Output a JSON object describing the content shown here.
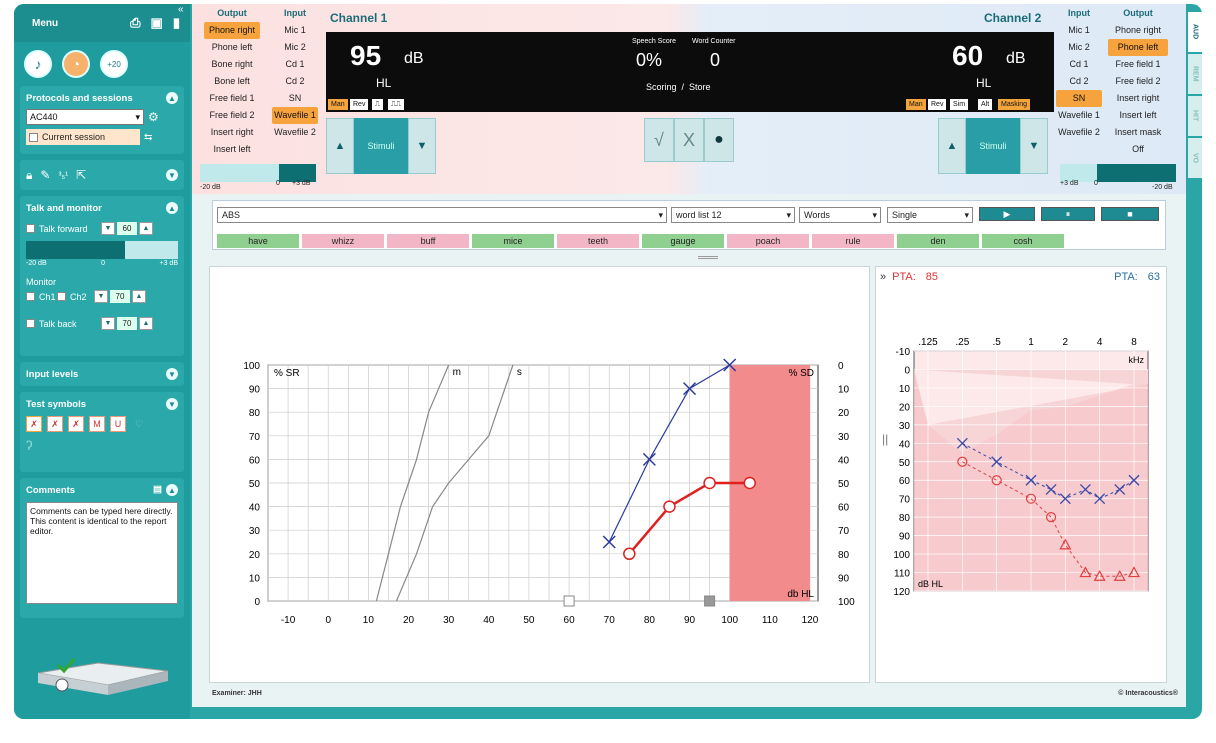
{
  "sidebar": {
    "menu_label": "Menu",
    "protocols": {
      "title": "Protocols and sessions",
      "protocol": "AC440",
      "session": "Current session"
    },
    "talk_monitor": {
      "title": "Talk and monitor",
      "talk_forward": "Talk forward",
      "talk_forward_value": "60",
      "scale_left": "-20 dB",
      "scale_mid": "0",
      "scale_right": "+3 dB",
      "monitor": "Monitor",
      "ch1": "Ch1",
      "ch2": "Ch2",
      "monitor_value": "70",
      "talk_back": "Talk back",
      "talk_back_value": "70"
    },
    "input_levels": "Input levels",
    "test_symbols": "Test symbols",
    "comments": {
      "title": "Comments",
      "text": "Comments can be typed here directly. This content is identical to the report editor."
    }
  },
  "channel1": {
    "title": "Channel 1",
    "output_header": "Output",
    "input_header": "Input",
    "outputs": [
      "Phone right",
      "Phone left",
      "Bone right",
      "Bone left",
      "Free field 1",
      "Free field 2",
      "Insert right",
      "Insert left"
    ],
    "inputs": [
      "Mic 1",
      "Mic 2",
      "Cd 1",
      "Cd 2",
      "SN",
      "Wavefile 1",
      "Wavefile 2"
    ],
    "selected_output": "Phone right",
    "selected_input": "Wavefile 1",
    "level": "95",
    "unit": "dB",
    "hl": "HL",
    "buttons": [
      "Man",
      "Rev"
    ],
    "stimuli": "Stimuli",
    "scale_left": "-20 dB",
    "scale_mid": "0",
    "scale_right": "+3 dB"
  },
  "channel2": {
    "title": "Channel 2",
    "output_header": "Output",
    "input_header": "Input",
    "outputs": [
      "Phone right",
      "Phone left",
      "Free field 1",
      "Free field 2",
      "Insert right",
      "Insert left",
      "Insert mask",
      "Off"
    ],
    "inputs": [
      "Mic 1",
      "Mic 2",
      "Cd 1",
      "Cd 2",
      "SN",
      "Wavefile 1",
      "Wavefile 2"
    ],
    "selected_output": "Phone left",
    "selected_input": "SN",
    "level": "60",
    "unit": "dB",
    "hl": "HL",
    "buttons": [
      "Man",
      "Rev",
      "Sim",
      "Alt",
      "Masking"
    ],
    "stimuli": "Stimuli",
    "scale_left": "+3 dB",
    "scale_mid": "0",
    "scale_right": "-20 dB"
  },
  "center_display": {
    "speech_score_label": "Speech Score",
    "speech_score": "0%",
    "word_counter_label": "Word Counter",
    "word_counter": "0",
    "scoring": "Scoring",
    "slash": "/",
    "store": "Store"
  },
  "word_bar": {
    "list_name": "ABS",
    "word_list": "word list 12",
    "mode": "Words",
    "presentation": "Single",
    "words": [
      "have",
      "whizz",
      "buff",
      "mice",
      "teeth",
      "gauge",
      "poach",
      "rule",
      "den",
      "cosh"
    ],
    "word_colors": [
      "#8fcf8f",
      "#f2b6c6",
      "#f2b6c6",
      "#8fcf8f",
      "#f2b6c6",
      "#8fcf8f",
      "#f2b6c6",
      "#f2b6c6",
      "#8fcf8f",
      "#8fcf8f"
    ]
  },
  "speech_chart": {
    "y_left_label": "% SR",
    "y_right_label": "% SD",
    "x_unit": "db HL",
    "y_left_ticks": [
      "100",
      "90",
      "80",
      "70",
      "60",
      "50",
      "40",
      "30",
      "20",
      "10",
      "0"
    ],
    "y_right_ticks": [
      "0",
      "10",
      "20",
      "30",
      "40",
      "50",
      "60",
      "70",
      "80",
      "90",
      "100"
    ],
    "x_ticks": [
      "-10",
      "0",
      "10",
      "20",
      "30",
      "40",
      "50",
      "60",
      "70",
      "80",
      "90",
      "100",
      "110",
      "120"
    ],
    "curve_labels": [
      "m",
      "s"
    ]
  },
  "chart_data": [
    {
      "type": "line",
      "xlabel": "db HL",
      "ylabel": "% SR",
      "xlim": [
        -15,
        122
      ],
      "ylim": [
        0,
        100
      ],
      "series": [
        {
          "name": "m",
          "x": [
            12,
            15,
            18,
            20,
            22,
            25,
            30
          ],
          "y": [
            0,
            20,
            40,
            50,
            60,
            80,
            100
          ],
          "color": "#888888"
        },
        {
          "name": "s",
          "x": [
            17,
            22,
            26,
            30,
            35,
            40,
            46
          ],
          "y": [
            0,
            20,
            40,
            50,
            60,
            70,
            100
          ],
          "color": "#888888"
        },
        {
          "x": [
            70,
            80,
            90,
            100
          ],
          "y": [
            25,
            60,
            90,
            100
          ],
          "color": "#2a3aa0",
          "marker": "x"
        },
        {
          "x": [
            75,
            85,
            95,
            105
          ],
          "y": [
            20,
            40,
            50,
            50
          ],
          "color": "#e02020",
          "marker": "o"
        }
      ],
      "shaded_region": {
        "x": [
          100,
          120
        ],
        "y": [
          0,
          100
        ],
        "color": "#f28b8b"
      }
    },
    {
      "type": "line",
      "xlabel": "kHz",
      "ylabel": "dB HL",
      "x_ticks": [
        ".125",
        ".25",
        ".5",
        "1",
        "2",
        "4",
        "8"
      ],
      "y_ticks": [
        "-10",
        "0",
        "10",
        "20",
        "30",
        "40",
        "50",
        "60",
        "70",
        "80",
        "90",
        "100",
        "110",
        "120"
      ],
      "ylim": [
        -10,
        120
      ],
      "series": [
        {
          "x": [
            0.25,
            0.5,
            1,
            1.5,
            2,
            3,
            4,
            6,
            8
          ],
          "y": [
            40,
            50,
            60,
            65,
            70,
            65,
            70,
            65,
            60
          ],
          "color": "#3a4aa8",
          "marker": "x",
          "dashed": true
        },
        {
          "x": [
            0.25,
            0.5,
            1,
            1.5,
            2,
            3,
            4,
            6,
            8
          ],
          "y": [
            50,
            60,
            70,
            80,
            95,
            110,
            112,
            112,
            110
          ],
          "color": "#e04040",
          "marker": "o/triangle",
          "dashed": true
        }
      ]
    }
  ],
  "audiogram": {
    "pta_left_label": "PTA:",
    "pta_left": "85",
    "pta_right_label": "PTA:",
    "pta_right": "63",
    "x_ticks": [
      ".125",
      ".25",
      ".5",
      "1",
      "2",
      "4",
      "8"
    ],
    "y_ticks": [
      "-10",
      "0",
      "10",
      "20",
      "30",
      "40",
      "50",
      "60",
      "70",
      "80",
      "90",
      "100",
      "110",
      "120"
    ],
    "x_unit": "kHz",
    "y_unit": "dB HL"
  },
  "footer": {
    "examiner": "Examiner: JHH",
    "brand": "© Interacoustics®"
  },
  "right_tabs": [
    "AUD",
    "REM",
    "HIT",
    "VO"
  ]
}
